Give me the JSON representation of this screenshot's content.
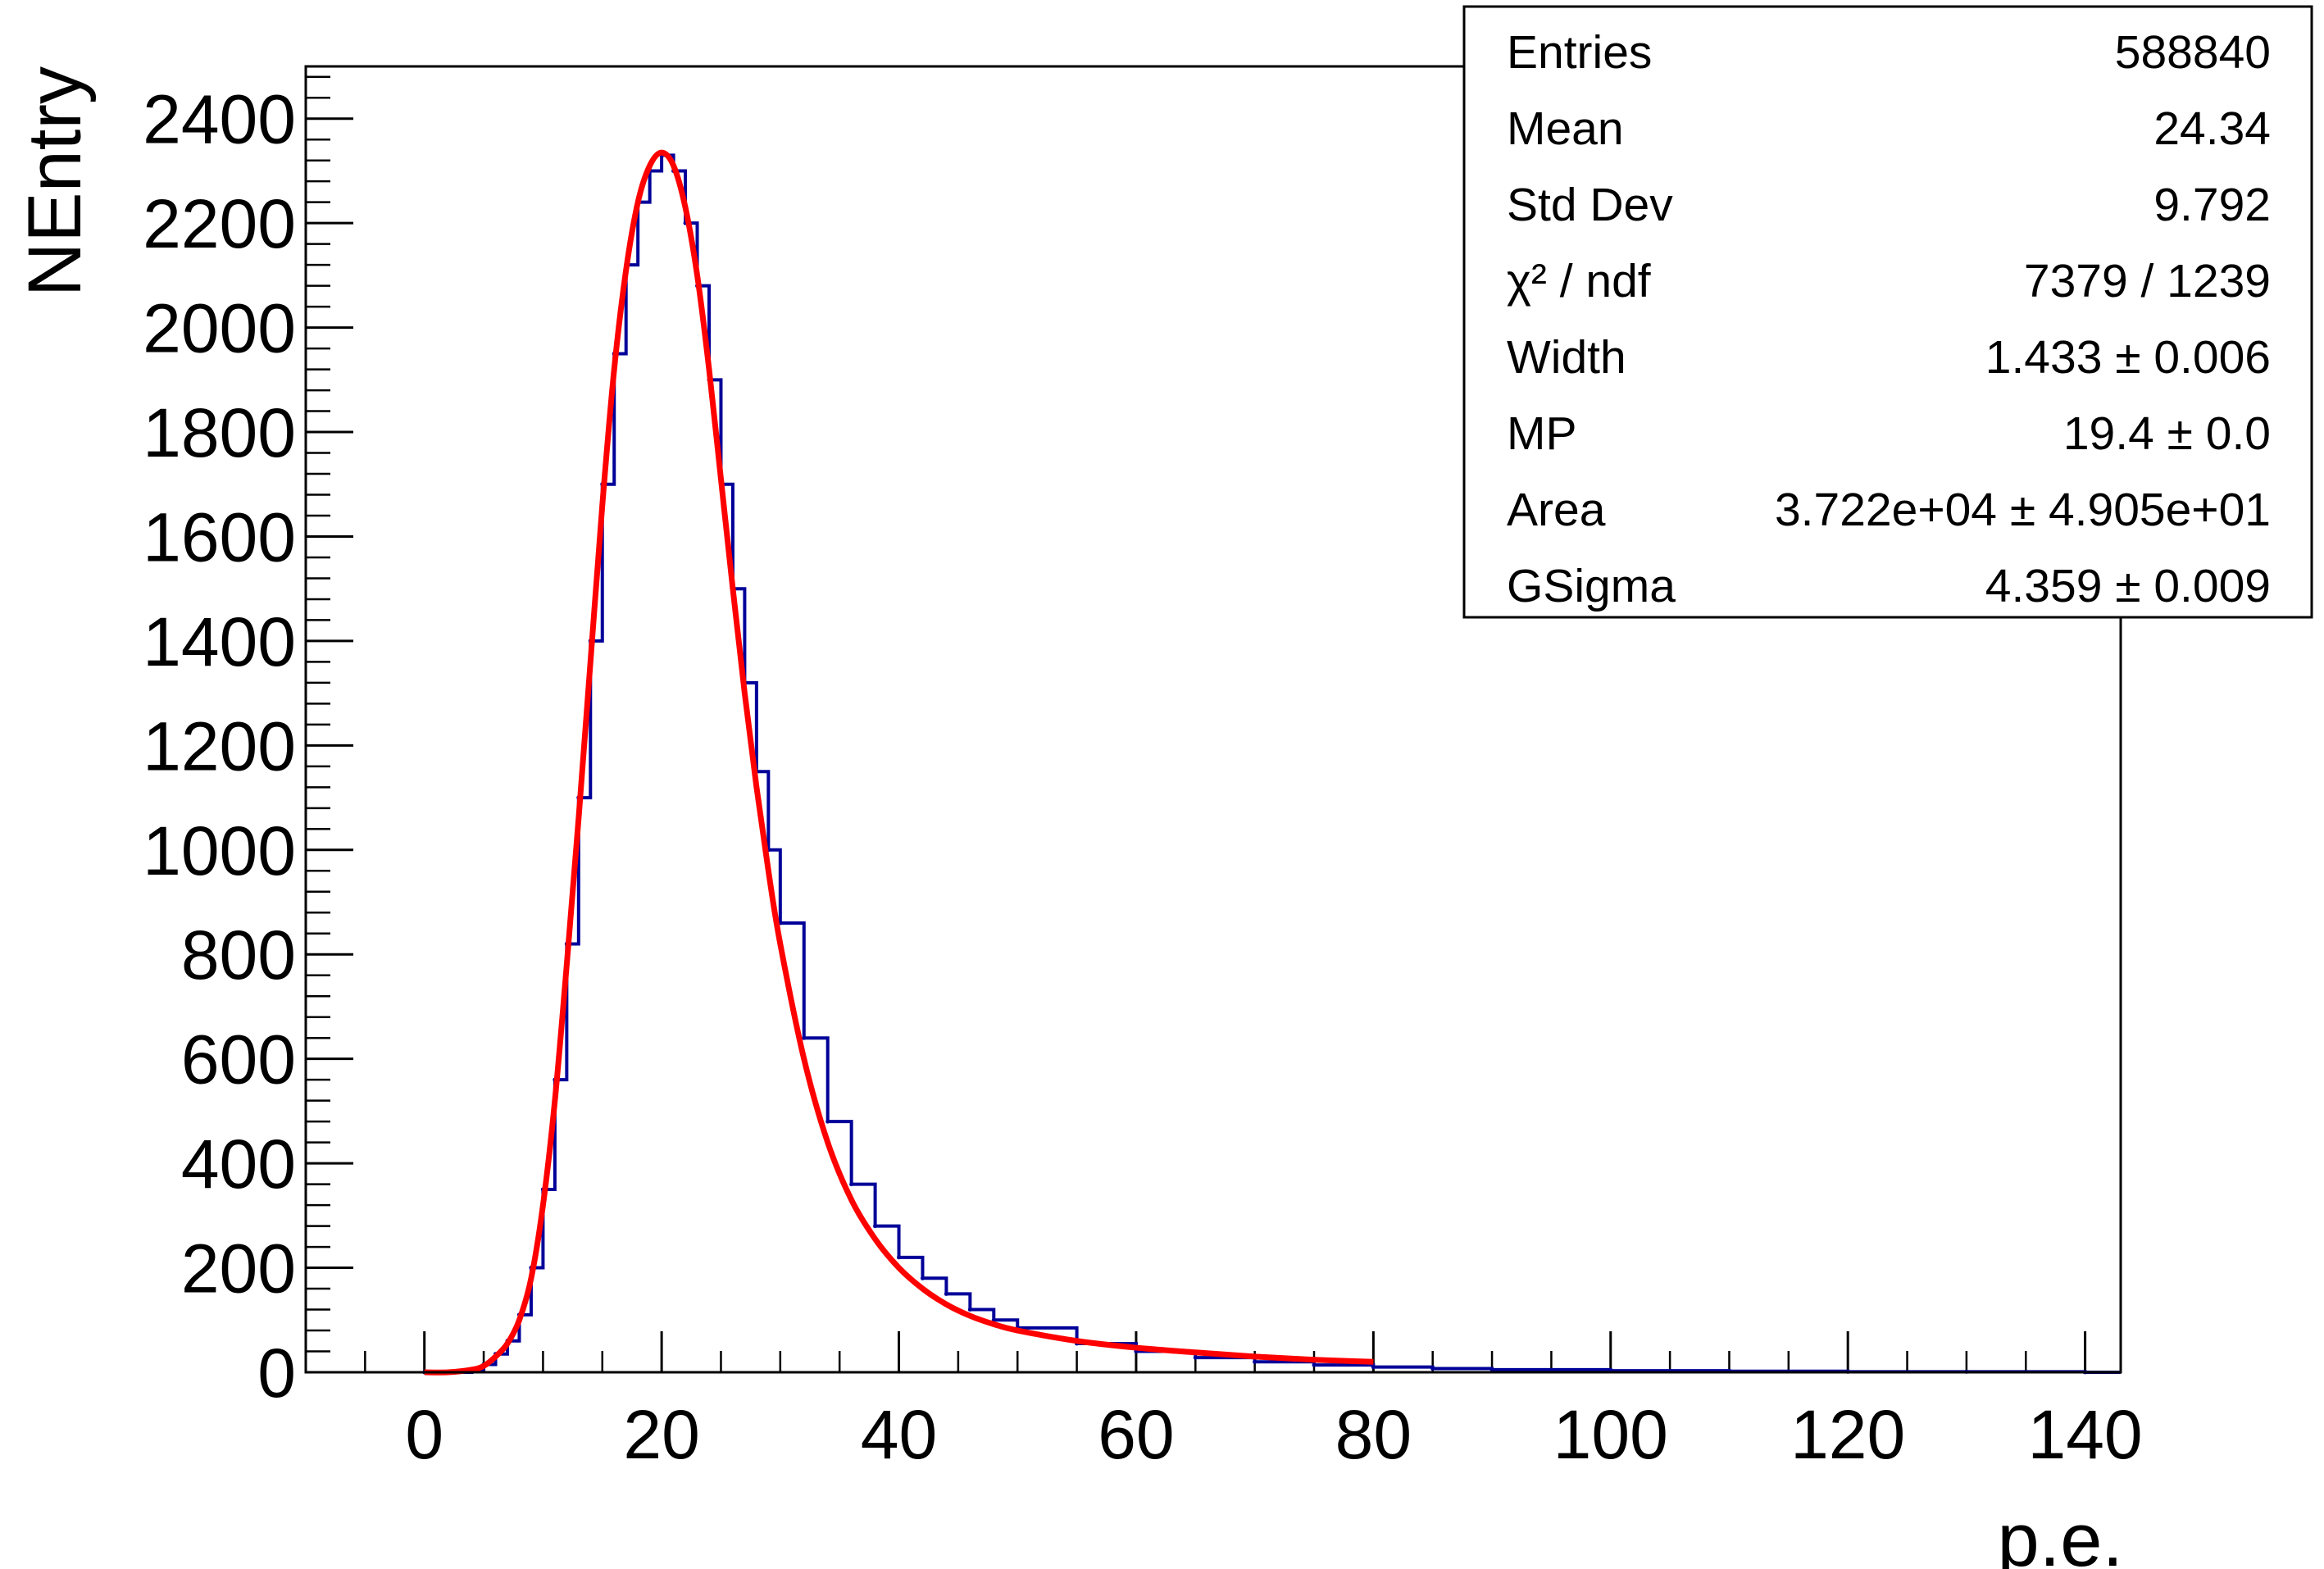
{
  "chart_data": {
    "type": "line",
    "title": "",
    "xlabel": "p.e.",
    "ylabel": "NEntry",
    "xlim": [
      -10,
      143
    ],
    "ylim": [
      0,
      2500
    ],
    "x_ticks": [
      0,
      20,
      40,
      60,
      80,
      100,
      120,
      140
    ],
    "y_ticks": [
      0,
      200,
      400,
      600,
      800,
      1000,
      1200,
      1400,
      1600,
      1800,
      2000,
      2200,
      2400
    ],
    "x_tick_labels": [
      "0",
      "20",
      "40",
      "60",
      "80",
      "100",
      "120",
      "140"
    ],
    "y_tick_labels": [
      "0",
      "200",
      "400",
      "600",
      "800",
      "1000",
      "1200",
      "1400",
      "1600",
      "1800",
      "2000",
      "2200",
      "2400"
    ],
    "grid": false,
    "legend": "none",
    "series": [
      {
        "style": "histogram",
        "color": "#000099",
        "x": [
          0,
          2,
          4,
          5,
          6,
          7,
          8,
          9,
          10,
          11,
          12,
          13,
          14,
          15,
          16,
          17,
          18,
          19,
          20,
          21,
          22,
          23,
          24,
          25,
          26,
          27,
          28,
          29,
          30,
          32,
          34,
          36,
          38,
          40,
          42,
          44,
          46,
          48,
          50,
          55,
          60,
          65,
          70,
          75,
          80,
          85,
          90,
          100,
          110,
          120,
          130,
          140
        ],
        "y": [
          0,
          0,
          5,
          15,
          35,
          60,
          110,
          200,
          350,
          560,
          820,
          1100,
          1400,
          1700,
          1950,
          2120,
          2240,
          2300,
          2330,
          2300,
          2200,
          2080,
          1900,
          1700,
          1500,
          1320,
          1150,
          1000,
          860,
          640,
          480,
          360,
          280,
          220,
          180,
          150,
          120,
          100,
          85,
          55,
          40,
          28,
          20,
          14,
          10,
          7,
          5,
          3,
          2,
          1,
          1,
          0
        ]
      },
      {
        "style": "fit",
        "color": "#ff0000",
        "x": [
          0,
          2,
          4,
          5,
          6,
          7,
          8,
          9,
          10,
          11,
          12,
          13,
          14,
          15,
          16,
          17,
          18,
          19,
          20,
          21,
          22,
          23,
          24,
          25,
          26,
          27,
          28,
          29,
          30,
          32,
          34,
          36,
          38,
          40,
          42,
          44,
          46,
          48,
          50,
          55,
          60,
          65,
          70,
          75,
          80
        ],
        "y": [
          0,
          0,
          5,
          12,
          30,
          55,
          100,
          180,
          320,
          520,
          780,
          1060,
          1360,
          1660,
          1920,
          2110,
          2240,
          2310,
          2335,
          2310,
          2230,
          2100,
          1920,
          1710,
          1500,
          1300,
          1120,
          960,
          820,
          600,
          440,
          330,
          255,
          200,
          160,
          130,
          108,
          92,
          80,
          60,
          47,
          38,
          30,
          24,
          20
        ]
      }
    ]
  },
  "stats_box": {
    "rows": [
      {
        "label": "Entries",
        "value": "588840"
      },
      {
        "label": "Mean",
        "value": "24.34"
      },
      {
        "label": "Std Dev",
        "value": "9.792"
      },
      {
        "label": "χ² / ndf",
        "value": "7379 / 1239"
      },
      {
        "label": "Width",
        "value": "1.433 ± 0.006"
      },
      {
        "label": "MP",
        "value": "19.4 ± 0.0"
      },
      {
        "label": "Area",
        "value": "3.722e+04 ± 4.905e+01"
      },
      {
        "label": "GSigma",
        "value": "4.359 ± 0.009"
      }
    ]
  }
}
